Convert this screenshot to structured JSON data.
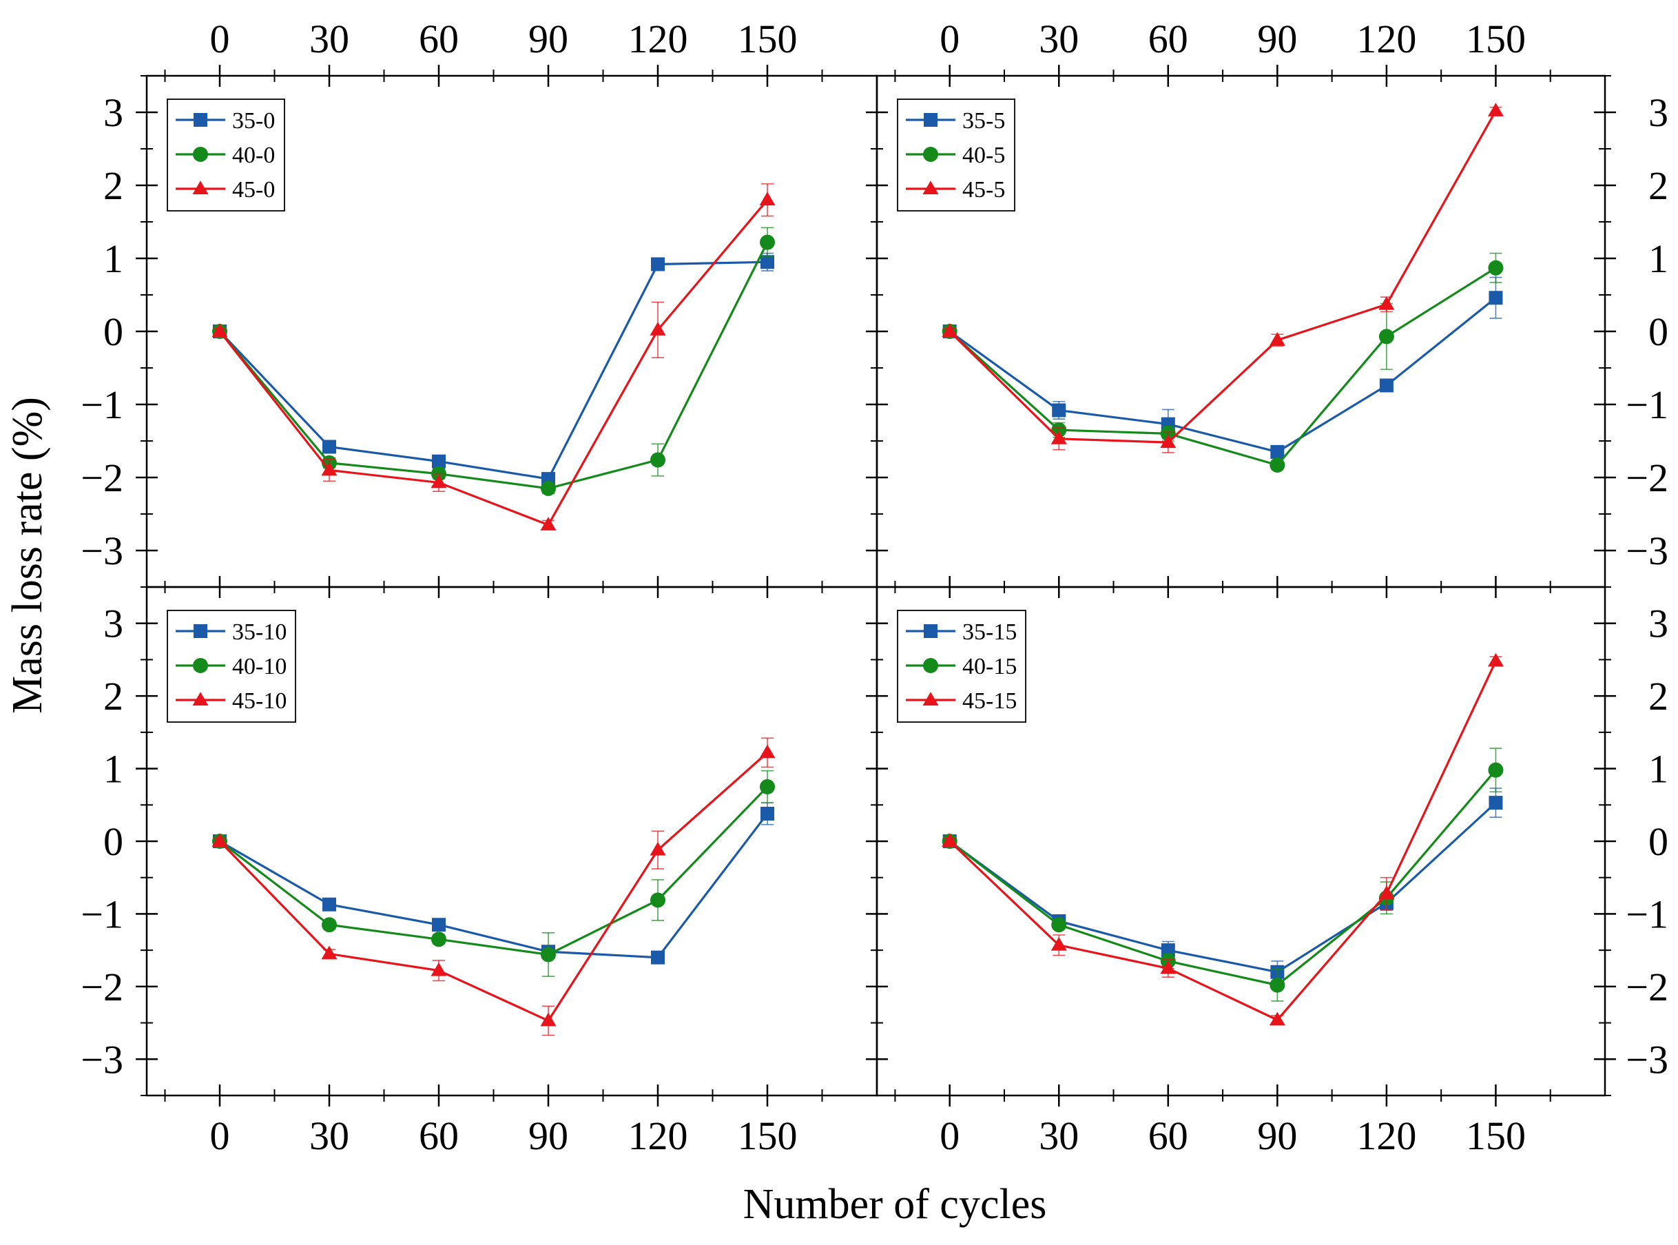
{
  "figure": {
    "ylabel": "Mass loss rate (%)",
    "xlabel": "Number of cycles"
  },
  "chart_data": [
    {
      "type": "line",
      "panel": "top-left",
      "x": [
        0,
        30,
        60,
        90,
        120,
        150
      ],
      "xticks": [
        "0",
        "30",
        "60",
        "90",
        "120",
        "150"
      ],
      "yticks": [
        "3",
        "2",
        "1",
        "0",
        "−1",
        "−2",
        "−3"
      ],
      "xlim": [
        -20,
        180
      ],
      "ylim": [
        -3.5,
        3.5
      ],
      "legend_position": "top-left",
      "series": [
        {
          "name": "35-0",
          "color": "#1a5aa8",
          "marker": "square",
          "values": [
            0,
            -1.58,
            -1.78,
            -2.02,
            0.92,
            0.95
          ],
          "errors": [
            0.04,
            0.06,
            0.06,
            0.08,
            0.05,
            0.12
          ]
        },
        {
          "name": "40-0",
          "color": "#138a1a",
          "marker": "circle",
          "values": [
            0,
            -1.8,
            -1.95,
            -2.15,
            -1.76,
            1.22
          ],
          "errors": [
            0.04,
            0.07,
            0.07,
            0.07,
            0.22,
            0.2
          ]
        },
        {
          "name": "45-0",
          "color": "#e8141b",
          "marker": "triangle",
          "values": [
            0,
            -1.9,
            -2.07,
            -2.65,
            0.02,
            1.8
          ],
          "errors": [
            0.04,
            0.15,
            0.12,
            0.06,
            0.38,
            0.22
          ]
        }
      ]
    },
    {
      "type": "line",
      "panel": "top-right",
      "x": [
        0,
        30,
        60,
        90,
        120,
        150
      ],
      "xticks": [
        "0",
        "30",
        "60",
        "90",
        "120",
        "150"
      ],
      "yticks": [
        "3",
        "2",
        "1",
        "0",
        "−1",
        "−2",
        "−3"
      ],
      "xlim": [
        -20,
        180
      ],
      "ylim": [
        -3.5,
        3.5
      ],
      "legend_position": "top-left",
      "series": [
        {
          "name": "35-5",
          "color": "#1a5aa8",
          "marker": "square",
          "values": [
            0,
            -1.08,
            -1.27,
            -1.65,
            -0.74,
            0.46
          ],
          "errors": [
            0.04,
            0.12,
            0.2,
            0.06,
            0.06,
            0.28
          ]
        },
        {
          "name": "40-5",
          "color": "#138a1a",
          "marker": "circle",
          "values": [
            0,
            -1.35,
            -1.4,
            -1.83,
            -0.07,
            0.87
          ],
          "errors": [
            0.04,
            0.1,
            0.1,
            0.06,
            0.45,
            0.2
          ]
        },
        {
          "name": "45-5",
          "color": "#e8141b",
          "marker": "triangle",
          "values": [
            0,
            -1.47,
            -1.52,
            -0.12,
            0.37,
            3.02
          ],
          "errors": [
            0.04,
            0.15,
            0.14,
            0.08,
            0.1,
            0.05
          ]
        }
      ]
    },
    {
      "type": "line",
      "panel": "bottom-left",
      "x": [
        0,
        30,
        60,
        90,
        120,
        150
      ],
      "xticks": [
        "0",
        "30",
        "60",
        "90",
        "120",
        "150"
      ],
      "yticks": [
        "3",
        "2",
        "1",
        "0",
        "−1",
        "−2",
        "−3"
      ],
      "xlim": [
        -20,
        180
      ],
      "ylim": [
        -3.5,
        3.5
      ],
      "legend_position": "top-left",
      "series": [
        {
          "name": "35-10",
          "color": "#1a5aa8",
          "marker": "square",
          "values": [
            0,
            -0.87,
            -1.15,
            -1.52,
            -1.6,
            0.38
          ],
          "errors": [
            0.04,
            0.05,
            0.05,
            0.06,
            0.05,
            0.15
          ]
        },
        {
          "name": "40-10",
          "color": "#138a1a",
          "marker": "circle",
          "values": [
            0,
            -1.15,
            -1.35,
            -1.56,
            -0.81,
            0.75
          ],
          "errors": [
            0.04,
            0.06,
            0.06,
            0.3,
            0.28,
            0.22
          ]
        },
        {
          "name": "45-10",
          "color": "#e8141b",
          "marker": "triangle",
          "values": [
            0,
            -1.55,
            -1.78,
            -2.47,
            -0.12,
            1.22
          ],
          "errors": [
            0.04,
            0.06,
            0.14,
            0.2,
            0.26,
            0.2
          ]
        }
      ]
    },
    {
      "type": "line",
      "panel": "bottom-right",
      "x": [
        0,
        30,
        60,
        90,
        120,
        150
      ],
      "xticks": [
        "0",
        "30",
        "60",
        "90",
        "120",
        "150"
      ],
      "yticks": [
        "3",
        "2",
        "1",
        "0",
        "−1",
        "−2",
        "−3"
      ],
      "xlim": [
        -20,
        180
      ],
      "ylim": [
        -3.5,
        3.5
      ],
      "legend_position": "top-left",
      "series": [
        {
          "name": "35-15",
          "color": "#1a5aa8",
          "marker": "square",
          "values": [
            0,
            -1.1,
            -1.5,
            -1.8,
            -0.85,
            0.53
          ],
          "errors": [
            0.04,
            0.08,
            0.12,
            0.15,
            0.1,
            0.2
          ]
        },
        {
          "name": "40-15",
          "color": "#138a1a",
          "marker": "circle",
          "values": [
            0,
            -1.15,
            -1.65,
            -1.98,
            -0.78,
            0.98
          ],
          "errors": [
            0.04,
            0.06,
            0.1,
            0.22,
            0.22,
            0.3
          ]
        },
        {
          "name": "45-15",
          "color": "#e8141b",
          "marker": "triangle",
          "values": [
            0,
            -1.43,
            -1.75,
            -2.46,
            -0.72,
            2.48
          ],
          "errors": [
            0.04,
            0.14,
            0.12,
            0.06,
            0.22,
            0.06
          ]
        }
      ]
    }
  ]
}
